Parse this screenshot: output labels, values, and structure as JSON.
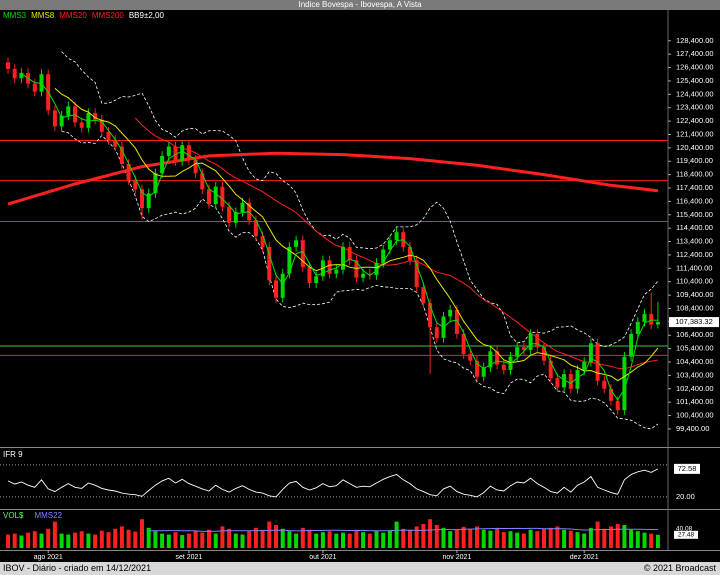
{
  "title": "Indice Bovespa - Ibovespa, A Vista",
  "chart_data": [
    {
      "type": "candlestick",
      "indicators": [
        {
          "name": "MMS3",
          "color": "#00e000"
        },
        {
          "name": "MMS8",
          "color": "#e8e800"
        },
        {
          "name": "MMS20",
          "color": "#ff2020"
        },
        {
          "name": "MMS200",
          "color": "#ff2020"
        },
        {
          "name": "BB9±2,00",
          "color": "#ffffff"
        }
      ],
      "ohlc": [
        [
          126800,
          127150,
          125950,
          126300
        ],
        [
          126300,
          126650,
          125250,
          125600
        ],
        [
          125600,
          126350,
          125250,
          126000
        ],
        [
          126000,
          126350,
          124850,
          125200
        ],
        [
          125200,
          125550,
          124250,
          124600
        ],
        [
          124600,
          126250,
          124250,
          125900
        ],
        [
          125900,
          126250,
          122850,
          123200
        ],
        [
          123200,
          123550,
          121650,
          122000
        ],
        [
          122000,
          123150,
          121650,
          122800
        ],
        [
          122800,
          123850,
          122450,
          123500
        ],
        [
          123500,
          123850,
          121950,
          122300
        ],
        [
          122300,
          122650,
          121550,
          121900
        ],
        [
          121900,
          123350,
          121550,
          123000
        ],
        [
          123000,
          123350,
          122150,
          122500
        ],
        [
          122500,
          122850,
          121250,
          121600
        ],
        [
          121600,
          121950,
          120650,
          121000
        ],
        [
          121000,
          121350,
          120150,
          120500
        ],
        [
          120500,
          120850,
          118850,
          119200
        ],
        [
          119200,
          119550,
          117650,
          118000
        ],
        [
          118000,
          118350,
          116950,
          117300
        ],
        [
          117300,
          117650,
          115050,
          115900
        ],
        [
          115900,
          117350,
          115550,
          117000
        ],
        [
          117000,
          118850,
          116650,
          118500
        ],
        [
          118500,
          120150,
          118150,
          119800
        ],
        [
          119800,
          120850,
          119450,
          120500
        ],
        [
          120500,
          120850,
          119050,
          119400
        ],
        [
          119400,
          120950,
          119050,
          120600
        ],
        [
          120600,
          120950,
          119150,
          119500
        ],
        [
          119500,
          119850,
          118150,
          118500
        ],
        [
          118500,
          118850,
          116950,
          117300
        ],
        [
          117300,
          117650,
          115850,
          116200
        ],
        [
          116200,
          117850,
          115850,
          117500
        ],
        [
          117500,
          117850,
          115650,
          116000
        ],
        [
          116000,
          116350,
          114450,
          114800
        ],
        [
          114800,
          115950,
          114450,
          115600
        ],
        [
          115600,
          116650,
          115250,
          116300
        ],
        [
          116300,
          116650,
          114650,
          115000
        ],
        [
          115000,
          115350,
          113450,
          113800
        ],
        [
          113800,
          114150,
          112650,
          113000
        ],
        [
          113000,
          113350,
          110150,
          110500
        ],
        [
          110500,
          110850,
          108850,
          109200
        ],
        [
          109200,
          111350,
          108850,
          111000
        ],
        [
          111000,
          113350,
          110650,
          113000
        ],
        [
          113000,
          113850,
          112650,
          113500
        ],
        [
          113500,
          113850,
          111150,
          111500
        ],
        [
          111500,
          111850,
          109950,
          110300
        ],
        [
          110300,
          111150,
          109950,
          110800
        ],
        [
          110800,
          112350,
          110450,
          112000
        ],
        [
          112000,
          112350,
          110650,
          111000
        ],
        [
          111000,
          111650,
          110650,
          111300
        ],
        [
          111300,
          113350,
          110950,
          113000
        ],
        [
          113000,
          113350,
          111650,
          112000
        ],
        [
          112000,
          112350,
          110350,
          110700
        ],
        [
          110700,
          111350,
          110350,
          111000
        ],
        [
          111000,
          111350,
          110550,
          110900
        ],
        [
          110900,
          112150,
          110550,
          111800
        ],
        [
          111800,
          113150,
          111450,
          112800
        ],
        [
          112800,
          113850,
          112450,
          113500
        ],
        [
          113500,
          114450,
          113150,
          114100
        ],
        [
          114100,
          114450,
          112650,
          113000
        ],
        [
          113000,
          113350,
          111650,
          112000
        ],
        [
          112000,
          112350,
          109650,
          110000
        ],
        [
          110000,
          110350,
          108450,
          108800
        ],
        [
          108800,
          109150,
          103500,
          107000
        ],
        [
          107000,
          107350,
          105850,
          106200
        ],
        [
          106200,
          108150,
          105850,
          107800
        ],
        [
          107800,
          108650,
          107450,
          108300
        ],
        [
          108300,
          108650,
          106150,
          106500
        ],
        [
          106500,
          106850,
          104650,
          105000
        ],
        [
          105000,
          105350,
          104150,
          104500
        ],
        [
          104500,
          104850,
          102950,
          103300
        ],
        [
          103300,
          104350,
          102950,
          104000
        ],
        [
          104000,
          105550,
          103650,
          105200
        ],
        [
          105200,
          105550,
          103850,
          104200
        ],
        [
          104200,
          104550,
          103450,
          103800
        ],
        [
          103800,
          105150,
          103450,
          104800
        ],
        [
          104800,
          105850,
          104450,
          105500
        ],
        [
          105500,
          105850,
          104950,
          105300
        ],
        [
          105300,
          106850,
          104950,
          106500
        ],
        [
          106500,
          106850,
          105150,
          105500
        ],
        [
          105500,
          105850,
          104150,
          104500
        ],
        [
          104500,
          104850,
          102850,
          103200
        ],
        [
          103200,
          103550,
          102150,
          102500
        ],
        [
          102500,
          103850,
          102150,
          103500
        ],
        [
          103500,
          103850,
          102050,
          102400
        ],
        [
          102400,
          104150,
          102050,
          103800
        ],
        [
          103800,
          104750,
          103450,
          104400
        ],
        [
          104400,
          106150,
          104050,
          105800
        ],
        [
          105800,
          106150,
          102650,
          103000
        ],
        [
          103000,
          103350,
          102050,
          102400
        ],
        [
          102400,
          102750,
          101150,
          101500
        ],
        [
          101500,
          101850,
          100450,
          100800
        ],
        [
          100800,
          105150,
          100450,
          104800
        ],
        [
          104800,
          106850,
          104450,
          106500
        ],
        [
          106500,
          107750,
          106150,
          107400
        ],
        [
          107400,
          108350,
          107050,
          108000
        ],
        [
          108000,
          109600,
          106850,
          107200
        ],
        [
          107200,
          108900,
          106900,
          107383.32
        ]
      ],
      "mms200": {
        "x": [
          0,
          10,
          20,
          30,
          40,
          50,
          60,
          70,
          80,
          90,
          97
        ],
        "values": [
          116200,
          117700,
          119000,
          119800,
          120000,
          119900,
          119600,
          119100,
          118400,
          117600,
          117200
        ]
      },
      "last_label": "107,383.32",
      "levels": [
        {
          "value": 120950,
          "color": "#ff2020"
        },
        {
          "value": 117950,
          "color": "#ff2020"
        },
        {
          "value": 114900,
          "color": "#ff2020"
        },
        {
          "value": 105600,
          "color": "#40c040"
        },
        {
          "value": 104900,
          "color": "#ff2020"
        }
      ],
      "ylim": [
        98200,
        130700
      ],
      "yticks": [
        {
          "value": 128400,
          "label": "128,400.00"
        },
        {
          "value": 127400,
          "label": "127,400.00"
        },
        {
          "value": 126400,
          "label": "126,400.00"
        },
        {
          "value": 125400,
          "label": "125,400.00"
        },
        {
          "value": 124400,
          "label": "124,400.00"
        },
        {
          "value": 123400,
          "label": "123,400.00"
        },
        {
          "value": 122400,
          "label": "122,400.00"
        },
        {
          "value": 121400,
          "label": "121,400.00"
        },
        {
          "value": 120400,
          "label": "120,400.00"
        },
        {
          "value": 119400,
          "label": "119,400.00"
        },
        {
          "value": 118400,
          "label": "118,400.00"
        },
        {
          "value": 117400,
          "label": "117,400.00"
        },
        {
          "value": 116400,
          "label": "116,400.00"
        },
        {
          "value": 115400,
          "label": "115,400.00"
        },
        {
          "value": 114400,
          "label": "114,400.00"
        },
        {
          "value": 113400,
          "label": "113,400.00"
        },
        {
          "value": 112400,
          "label": "112,400.00"
        },
        {
          "value": 111400,
          "label": "111,400.00"
        },
        {
          "value": 110400,
          "label": "110,400.00"
        },
        {
          "value": 109400,
          "label": "109,400.00"
        },
        {
          "value": 108400,
          "label": "108,400.00"
        },
        {
          "value": 107400,
          "label": "107,400.00"
        },
        {
          "value": 106400,
          "label": "106,400.00"
        },
        {
          "value": 105400,
          "label": "105,400.00"
        },
        {
          "value": 104400,
          "label": "104,400.00"
        },
        {
          "value": 103400,
          "label": "103,400.00"
        },
        {
          "value": 102400,
          "label": "102,400.00"
        },
        {
          "value": 101400,
          "label": "101,400.00"
        },
        {
          "value": 100400,
          "label": "100,400.00"
        },
        {
          "value": 99400,
          "label": "99,400.00"
        }
      ],
      "xticks": [
        {
          "value": 6,
          "label": "ago 2021"
        },
        {
          "value": 27,
          "label": "set 2021"
        },
        {
          "value": 47,
          "label": "out 2021"
        },
        {
          "value": 67,
          "label": "nov 2021"
        },
        {
          "value": 86,
          "label": "dez 2021"
        }
      ]
    },
    {
      "type": "line",
      "title": "IFR 9",
      "color": "#ffffff",
      "values": [
        50,
        44,
        48,
        42,
        38,
        52,
        35,
        30,
        38,
        45,
        38,
        36,
        46,
        42,
        36,
        33,
        31,
        27,
        25,
        24,
        21,
        32,
        42,
        50,
        55,
        46,
        53,
        45,
        40,
        35,
        31,
        42,
        34,
        29,
        36,
        41,
        34,
        29,
        27,
        22,
        20,
        34,
        46,
        49,
        38,
        33,
        37,
        45,
        39,
        41,
        52,
        45,
        38,
        40,
        39,
        46,
        53,
        58,
        62,
        52,
        45,
        35,
        30,
        24,
        22,
        35,
        40,
        30,
        25,
        23,
        20,
        28,
        40,
        33,
        31,
        41,
        48,
        46,
        55,
        45,
        38,
        30,
        27,
        38,
        29,
        42,
        48,
        58,
        38,
        33,
        28,
        25,
        52,
        62,
        67,
        70,
        66,
        72.58
      ],
      "levels": [
        80,
        20
      ],
      "ylim": [
        1,
        108
      ],
      "yticks": [
        {
          "value": 20,
          "label": "20.00"
        }
      ]
    },
    {
      "type": "bar",
      "title": "VOL$",
      "ma_name": "MMS22",
      "ma_color": "#8080ff",
      "ma_last": 40.08,
      "values": [
        28,
        30,
        26,
        32,
        35,
        30,
        40,
        55,
        30,
        28,
        32,
        35,
        30,
        28,
        36,
        33,
        40,
        45,
        38,
        34,
        60,
        42,
        35,
        30,
        28,
        33,
        27,
        30,
        36,
        32,
        38,
        30,
        45,
        40,
        30,
        28,
        35,
        42,
        38,
        55,
        48,
        40,
        35,
        30,
        42,
        38,
        30,
        33,
        35,
        30,
        32,
        30,
        38,
        33,
        30,
        35,
        32,
        36,
        55,
        40,
        38,
        45,
        50,
        60,
        48,
        42,
        35,
        38,
        44,
        40,
        45,
        38,
        36,
        40,
        33,
        35,
        32,
        30,
        38,
        35,
        40,
        42,
        45,
        38,
        36,
        33,
        30,
        42,
        55,
        40,
        45,
        50,
        48,
        38,
        35,
        32,
        30,
        27.48
      ],
      "ylim": [
        0,
        75
      ]
    }
  ],
  "footer": {
    "left": "IBOV - Diário - criado em 14/12/2021",
    "right": "© 2021 Broadcast"
  }
}
